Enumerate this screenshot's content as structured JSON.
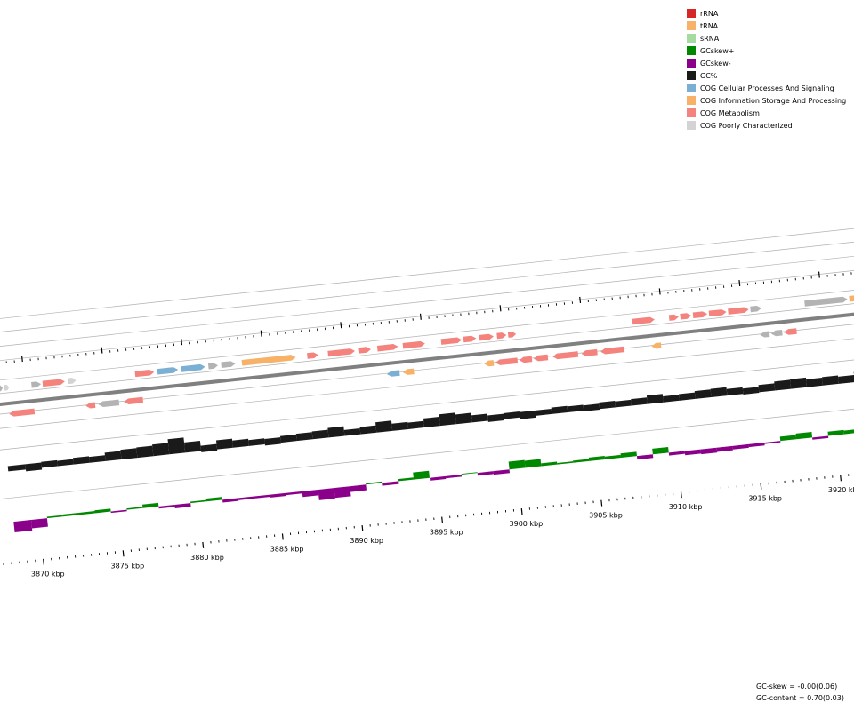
{
  "colors": {
    "rRNA": "#d62728",
    "tRNA": "#f7b267",
    "sRNA": "#a6dba0",
    "gcskew_pos": "#008800",
    "gcskew_neg": "#8b008b",
    "gc_content": "#1a1a1a",
    "cog_cellular": "#7bafd4",
    "cog_information": "#f7b267",
    "cog_metabolism": "#f4837d",
    "cog_poorly": "#d3d3d3",
    "cog_unassigned": "#b3b3b3",
    "backbone": "#808080",
    "track_line": "#b0b0b0"
  },
  "legend": {
    "items": [
      {
        "label": "rRNA",
        "color": "#d62728"
      },
      {
        "label": "tRNA",
        "color": "#f7b267"
      },
      {
        "label": "sRNA",
        "color": "#a6dba0"
      },
      {
        "label": "GCskew+",
        "color": "#008800"
      },
      {
        "label": "GCskew-",
        "color": "#8b008b"
      },
      {
        "label": "GC%",
        "color": "#1a1a1a"
      },
      {
        "label": "COG Cellular Processes And Signaling",
        "color": "#7bafd4"
      },
      {
        "label": "COG Information Storage And Processing",
        "color": "#f7b267"
      },
      {
        "label": "COG Metabolism",
        "color": "#f4837d"
      },
      {
        "label": "COG Poorly Characterized",
        "color": "#d3d3d3"
      }
    ]
  },
  "chart_data": {
    "type": "genome-map",
    "units": "kbp",
    "tick_labels": [
      "3870 kbp",
      "3875 kbp",
      "3880 kbp",
      "3885 kbp",
      "3890 kbp",
      "3895 kbp",
      "3900 kbp",
      "3905 kbp",
      "3910 kbp",
      "3915 kbp",
      "3920 kbp"
    ],
    "tick_positions_kbp": [
      3870,
      3875,
      3880,
      3885,
      3890,
      3895,
      3900,
      3905,
      3910,
      3915,
      3920
    ],
    "range_kbp": [
      3868.4,
      3921.8
    ],
    "genes": [
      {
        "start": 3868.2,
        "end": 3868.5,
        "strand": "+",
        "track": 0,
        "cog": "cog_unassigned"
      },
      {
        "start": 3868.6,
        "end": 3868.9,
        "strand": "+",
        "track": 0,
        "cog": "cog_poorly"
      },
      {
        "start": 3870.3,
        "end": 3870.9,
        "strand": "+",
        "track": 0,
        "cog": "cog_unassigned"
      },
      {
        "start": 3871.0,
        "end": 3872.4,
        "strand": "+",
        "track": 0,
        "cog": "cog_metabolism"
      },
      {
        "start": 3872.6,
        "end": 3873.1,
        "strand": "+",
        "track": 0,
        "cog": "cog_poorly"
      },
      {
        "start": 3876.8,
        "end": 3878.0,
        "strand": "+",
        "track": 0,
        "cog": "cog_metabolism"
      },
      {
        "start": 3878.2,
        "end": 3879.5,
        "strand": "+",
        "track": 0,
        "cog": "cog_cellular"
      },
      {
        "start": 3879.7,
        "end": 3881.2,
        "strand": "+",
        "track": 0,
        "cog": "cog_cellular"
      },
      {
        "start": 3881.4,
        "end": 3882.0,
        "strand": "+",
        "track": 0,
        "cog": "cog_unassigned"
      },
      {
        "start": 3882.2,
        "end": 3883.1,
        "strand": "+",
        "track": 0,
        "cog": "cog_unassigned"
      },
      {
        "start": 3883.5,
        "end": 3886.9,
        "strand": "+",
        "track": 0,
        "cog": "cog_information"
      },
      {
        "start": 3887.6,
        "end": 3888.3,
        "strand": "+",
        "track": 0,
        "cog": "cog_metabolism"
      },
      {
        "start": 3888.9,
        "end": 3890.6,
        "strand": "+",
        "track": 0,
        "cog": "cog_metabolism"
      },
      {
        "start": 3890.8,
        "end": 3891.6,
        "strand": "+",
        "track": 0,
        "cog": "cog_metabolism"
      },
      {
        "start": 3892.0,
        "end": 3893.3,
        "strand": "+",
        "track": 0,
        "cog": "cog_metabolism"
      },
      {
        "start": 3893.6,
        "end": 3895.0,
        "strand": "+",
        "track": 0,
        "cog": "cog_metabolism"
      },
      {
        "start": 3896.0,
        "end": 3897.3,
        "strand": "+",
        "track": 0,
        "cog": "cog_metabolism"
      },
      {
        "start": 3897.4,
        "end": 3898.2,
        "strand": "+",
        "track": 0,
        "cog": "cog_metabolism"
      },
      {
        "start": 3898.4,
        "end": 3899.3,
        "strand": "+",
        "track": 0,
        "cog": "cog_metabolism"
      },
      {
        "start": 3899.5,
        "end": 3900.1,
        "strand": "+",
        "track": 0,
        "cog": "cog_metabolism"
      },
      {
        "start": 3900.2,
        "end": 3900.7,
        "strand": "+",
        "track": 0,
        "cog": "cog_metabolism"
      },
      {
        "start": 3908.0,
        "end": 3909.4,
        "strand": "+",
        "track": 0,
        "cog": "cog_metabolism"
      },
      {
        "start": 3910.3,
        "end": 3910.9,
        "strand": "+",
        "track": 0,
        "cog": "cog_metabolism"
      },
      {
        "start": 3911.0,
        "end": 3911.7,
        "strand": "+",
        "track": 0,
        "cog": "cog_metabolism"
      },
      {
        "start": 3911.8,
        "end": 3912.7,
        "strand": "+",
        "track": 0,
        "cog": "cog_metabolism"
      },
      {
        "start": 3912.8,
        "end": 3913.9,
        "strand": "+",
        "track": 0,
        "cog": "cog_metabolism"
      },
      {
        "start": 3914.0,
        "end": 3915.3,
        "strand": "+",
        "track": 0,
        "cog": "cog_metabolism"
      },
      {
        "start": 3915.4,
        "end": 3916.1,
        "strand": "+",
        "track": 0,
        "cog": "cog_unassigned"
      },
      {
        "start": 3918.8,
        "end": 3921.5,
        "strand": "+",
        "track": 0,
        "cog": "cog_unassigned"
      },
      {
        "start": 3921.6,
        "end": 3923.4,
        "strand": "+",
        "track": 0,
        "cog": "cog_information"
      },
      {
        "start": 3868.9,
        "end": 3870.5,
        "strand": "-",
        "track": 1,
        "cog": "cog_metabolism"
      },
      {
        "start": 3873.7,
        "end": 3874.3,
        "strand": "-",
        "track": 1,
        "cog": "cog_metabolism"
      },
      {
        "start": 3874.5,
        "end": 3875.8,
        "strand": "-",
        "track": 1,
        "cog": "cog_unassigned"
      },
      {
        "start": 3876.1,
        "end": 3877.3,
        "strand": "-",
        "track": 1,
        "cog": "cog_metabolism"
      },
      {
        "start": 3892.6,
        "end": 3893.4,
        "strand": "-",
        "track": 1,
        "cog": "cog_cellular"
      },
      {
        "start": 3893.6,
        "end": 3894.3,
        "strand": "-",
        "track": 1,
        "cog": "cog_information"
      },
      {
        "start": 3898.7,
        "end": 3899.3,
        "strand": "-",
        "track": 1,
        "cog": "cog_information"
      },
      {
        "start": 3899.4,
        "end": 3900.8,
        "strand": "-",
        "track": 1,
        "cog": "cog_metabolism"
      },
      {
        "start": 3900.9,
        "end": 3901.7,
        "strand": "-",
        "track": 1,
        "cog": "cog_metabolism"
      },
      {
        "start": 3901.8,
        "end": 3902.7,
        "strand": "-",
        "track": 1,
        "cog": "cog_metabolism"
      },
      {
        "start": 3903.0,
        "end": 3904.6,
        "strand": "-",
        "track": 1,
        "cog": "cog_metabolism"
      },
      {
        "start": 3904.8,
        "end": 3905.8,
        "strand": "-",
        "track": 1,
        "cog": "cog_metabolism"
      },
      {
        "start": 3906.0,
        "end": 3907.5,
        "strand": "-",
        "track": 1,
        "cog": "cog_metabolism"
      },
      {
        "start": 3909.2,
        "end": 3909.8,
        "strand": "-",
        "track": 1,
        "cog": "cog_information"
      },
      {
        "start": 3916.0,
        "end": 3916.6,
        "strand": "-",
        "track": 1,
        "cog": "cog_unassigned"
      },
      {
        "start": 3916.7,
        "end": 3917.4,
        "strand": "-",
        "track": 1,
        "cog": "cog_unassigned"
      },
      {
        "start": 3917.5,
        "end": 3918.3,
        "strand": "-",
        "track": 1,
        "cog": "cog_metabolism"
      }
    ],
    "gc_content_profile": {
      "x": [
        3868.4,
        3869.5,
        3870.5,
        3871.5,
        3872.5,
        3873.5,
        3874.5,
        3875.5,
        3876.5,
        3877.5,
        3878.5,
        3879.5,
        3880.5,
        3881.5,
        3882.5,
        3883.5,
        3884.5,
        3885.5,
        3886.5,
        3887.5,
        3888.5,
        3889.5,
        3890.5,
        3891.5,
        3892.5,
        3893.5,
        3894.5,
        3895.5,
        3896.5,
        3897.5,
        3898.5,
        3899.5,
        3900.5,
        3901.5,
        3902.5,
        3903.5,
        3904.5,
        3905.5,
        3906.5,
        3907.5,
        3908.5,
        3909.5,
        3910.5,
        3911.5,
        3912.5,
        3913.5,
        3914.5,
        3915.5,
        3916.5,
        3917.5,
        3918.5,
        3919.5,
        3920.5,
        3921.5
      ],
      "y": [
        0.0,
        -0.3,
        0.1,
        0.0,
        0.2,
        0.1,
        0.5,
        0.7,
        0.8,
        1.0,
        1.6,
        0.8,
        -0.2,
        0.6,
        0.3,
        0.1,
        -0.2,
        0.2,
        0.3,
        0.4,
        0.7,
        0.1,
        0.3,
        0.8,
        0.3,
        0.2,
        0.6,
        1.0,
        0.7,
        0.3,
        -0.2,
        0.1,
        -0.3,
        0.0,
        0.2,
        0.1,
        -0.1,
        0.2,
        0.1,
        0.2,
        0.5,
        0.1,
        0.2,
        0.4,
        0.5,
        0.2,
        -0.1,
        0.3,
        0.6,
        0.7,
        0.4,
        0.5,
        0.3,
        0.8
      ]
    },
    "gc_skew_profile": {
      "x": [
        3868.4,
        3869.5,
        3870.5,
        3871.5,
        3872.5,
        3873.5,
        3874.5,
        3875.5,
        3876.5,
        3877.5,
        3878.5,
        3879.5,
        3880.5,
        3881.5,
        3882.5,
        3883.5,
        3884.5,
        3885.5,
        3886.5,
        3887.5,
        3888.5,
        3889.5,
        3890.5,
        3891.5,
        3892.5,
        3893.5,
        3894.5,
        3895.5,
        3896.5,
        3897.5,
        3898.5,
        3899.5,
        3900.5,
        3901.5,
        3902.5,
        3903.5,
        3904.5,
        3905.5,
        3906.5,
        3907.5,
        3908.5,
        3909.5,
        3910.5,
        3911.5,
        3912.5,
        3913.5,
        3914.5,
        3915.5,
        3916.5,
        3917.5,
        3918.5,
        3919.5,
        3920.5,
        3921.5
      ],
      "y": [
        -1.5,
        -1.2,
        0.2,
        0.3,
        0.3,
        0.4,
        -0.2,
        0.2,
        0.5,
        -0.3,
        -0.5,
        0.2,
        0.4,
        -0.4,
        -0.3,
        -0.3,
        -0.4,
        -0.3,
        -0.8,
        -1.5,
        -1.4,
        -0.8,
        0.2,
        -0.4,
        0.3,
        1.0,
        -0.4,
        -0.3,
        0.1,
        -0.4,
        -0.5,
        1.1,
        1.0,
        0.4,
        0.2,
        0.3,
        0.5,
        0.4,
        0.6,
        -0.5,
        0.8,
        -0.4,
        -0.6,
        -0.7,
        -0.6,
        -0.5,
        -0.4,
        -0.2,
        0.6,
        0.8,
        -0.3,
        0.6,
        0.5,
        0.4
      ]
    }
  },
  "stats": {
    "gc_skew": "GC-skew = -0.00(0.06)",
    "gc_content": "GC-content = 0.70(0.03)"
  }
}
